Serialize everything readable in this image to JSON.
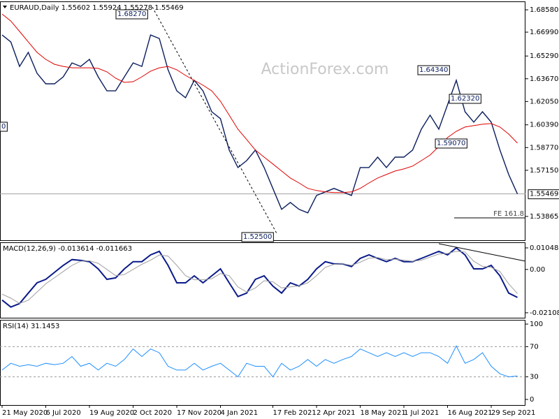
{
  "chart_data": [
    {
      "type": "line",
      "title": "EURAUD,Daily 1.55602 1.55924 1.55278 1.55469",
      "watermark": "ActionForex.com",
      "ylim": [
        1.5217,
        1.6918
      ],
      "yticks": [
        {
          "value": 1.6858,
          "label": "1.68580"
        },
        {
          "value": 1.6699,
          "label": "1.66990"
        },
        {
          "value": 1.6529,
          "label": "1.65290"
        },
        {
          "value": 1.6367,
          "label": "1.63670"
        },
        {
          "value": 1.6205,
          "label": "1.62050"
        },
        {
          "value": 1.6039,
          "label": "1.60390"
        },
        {
          "value": 1.5877,
          "label": "1.58770"
        },
        {
          "value": 1.5715,
          "label": "1.57150"
        },
        1.53865
      ],
      "current_price": 1.55469,
      "annotations": [
        "1.68270",
        "1.52500",
        "1.64340",
        "1.62320",
        "1.59070",
        "0",
        "FE 161.8"
      ],
      "series": [
        {
          "name": "EURAUD",
          "color": "#0b1e5e",
          "values": [
            1.6679,
            1.6629,
            1.6455,
            1.6555,
            1.6406,
            1.6331,
            1.6331,
            1.6381,
            1.648,
            1.6455,
            1.6505,
            1.6381,
            1.6281,
            1.6281,
            1.6381,
            1.648,
            1.6455,
            1.6679,
            1.6654,
            1.6431,
            1.6281,
            1.6232,
            1.6356,
            1.6281,
            1.6132,
            1.6083,
            1.5859,
            1.5735,
            1.5784,
            1.5859,
            1.5735,
            1.5586,
            1.5437,
            1.5486,
            1.5437,
            1.5412,
            1.5536,
            1.5561,
            1.5586,
            1.5561,
            1.5536,
            1.5735,
            1.5735,
            1.5809,
            1.5735,
            1.5809,
            1.5809,
            1.5859,
            1.6008,
            1.6108,
            1.6008,
            1.6182,
            1.6356,
            1.6132,
            1.6058,
            1.6132,
            1.6058,
            1.5859,
            1.5685,
            1.5547
          ]
        },
        {
          "name": "MA",
          "color": "#e00000",
          "values": [
            1.6828,
            1.6778,
            1.6704,
            1.6629,
            1.6555,
            1.6505,
            1.647,
            1.6455,
            1.6445,
            1.6445,
            1.6445,
            1.6441,
            1.6416,
            1.6371,
            1.6341,
            1.6346,
            1.6381,
            1.6421,
            1.6445,
            1.6455,
            1.6431,
            1.6391,
            1.6356,
            1.6321,
            1.6281,
            1.6207,
            1.6108,
            1.6008,
            1.5934,
            1.5859,
            1.5809,
            1.576,
            1.571,
            1.566,
            1.5625,
            1.5586,
            1.5571,
            1.5561,
            1.5556,
            1.5556,
            1.5561,
            1.5586,
            1.5625,
            1.566,
            1.5685,
            1.571,
            1.5725,
            1.5745,
            1.5784,
            1.5824,
            1.5884,
            1.5948,
            1.5993,
            1.6023,
            1.6033,
            1.6043,
            1.6048,
            1.6023,
            1.5973,
            1.5909
          ]
        }
      ]
    },
    {
      "type": "line",
      "title": "MACD(12,26,9) -0.013614 -0.011663",
      "ylim": [
        -0.0235,
        0.0132
      ],
      "yticks": [
        0.010489,
        {
          "value": 0,
          "label": "0.00"
        },
        -0.021083
      ],
      "series": [
        {
          "name": "MACD",
          "color": "#0a1a8a",
          "values": [
            -0.0149,
            -0.0183,
            -0.0166,
            -0.0115,
            -0.0065,
            -0.0048,
            -0.0014,
            0.002,
            0.0048,
            0.0044,
            0.0038,
            0.0003,
            -0.0048,
            -0.0041,
            0.0003,
            0.0038,
            0.0038,
            0.0071,
            0.0088,
            0.002,
            -0.0065,
            -0.0065,
            -0.0031,
            -0.0065,
            -0.0031,
            0.0003,
            -0.0065,
            -0.0132,
            -0.0115,
            -0.0048,
            -0.0031,
            -0.0081,
            -0.0115,
            -0.0065,
            -0.0081,
            -0.0048,
            0.0003,
            0.0038,
            0.0027,
            0.0027,
            0.0014,
            0.0054,
            0.0071,
            0.0054,
            0.0038,
            0.0054,
            0.0038,
            0.0038,
            0.0054,
            0.0071,
            0.0088,
            0.0071,
            0.0105,
            0.0071,
            0.0003,
            0.0003,
            0.002,
            -0.0031,
            -0.0115,
            -0.0136
          ]
        },
        {
          "name": "Signal",
          "color": "#a0a0a0",
          "values": [
            -0.012,
            -0.014,
            -0.0165,
            -0.015,
            -0.011,
            -0.007,
            -0.004,
            -0.001,
            0.002,
            0.004,
            0.0042,
            0.003,
            0.0,
            -0.003,
            -0.0025,
            0.0,
            0.0025,
            0.0045,
            0.007,
            0.0065,
            0.002,
            -0.003,
            -0.005,
            -0.005,
            -0.0045,
            -0.002,
            -0.003,
            -0.0085,
            -0.011,
            -0.009,
            -0.0055,
            -0.006,
            -0.009,
            -0.0085,
            -0.008,
            -0.0065,
            -0.003,
            0.001,
            0.0025,
            0.0028,
            0.002,
            0.0035,
            0.0055,
            0.0058,
            0.0048,
            0.005,
            0.0045,
            0.004,
            0.0045,
            0.006,
            0.0075,
            0.0078,
            0.0088,
            0.0085,
            0.004,
            0.0015,
            0.001,
            -0.001,
            -0.007,
            -0.0117
          ]
        }
      ]
    },
    {
      "type": "line",
      "title": "RSI(14) 31.1453",
      "ylim": [
        -7.4,
        105.6
      ],
      "yticks": [
        100,
        70,
        30,
        0
      ],
      "levels": [
        70,
        30
      ],
      "categories": [
        "21 May 2020",
        null,
        null,
        null,
        null,
        "6 Jul 2020",
        null,
        null,
        null,
        null,
        "19 Aug 2020",
        null,
        null,
        null,
        null,
        "2 Oct 2020",
        null,
        null,
        null,
        null,
        "17 Nov 2020",
        null,
        null,
        null,
        null,
        "4 Jan 2021",
        null,
        null,
        null,
        null,
        null,
        "17 Feb 2021",
        null,
        null,
        null,
        null,
        "2 Apr 2021",
        null,
        null,
        null,
        null,
        "18 May 2021",
        null,
        null,
        null,
        null,
        "1 Jul 2021",
        null,
        null,
        null,
        null,
        "16 Aug 2021",
        null,
        null,
        null,
        null,
        "29 Sep 2021",
        null,
        null,
        null
      ],
      "series": [
        {
          "name": "RSI",
          "color": "#1e8fff",
          "values": [
            39,
            48,
            44,
            46,
            44,
            48,
            46,
            48,
            57,
            44,
            48,
            39,
            48,
            44,
            53,
            67,
            57,
            67,
            62,
            44,
            39,
            39,
            48,
            39,
            44,
            48,
            39,
            30,
            48,
            44,
            44,
            30,
            48,
            39,
            44,
            53,
            44,
            53,
            48,
            53,
            57,
            67,
            62,
            57,
            62,
            57,
            62,
            57,
            62,
            62,
            57,
            48,
            71,
            48,
            53,
            62,
            44,
            34,
            30,
            31.1
          ]
        }
      ]
    }
  ]
}
